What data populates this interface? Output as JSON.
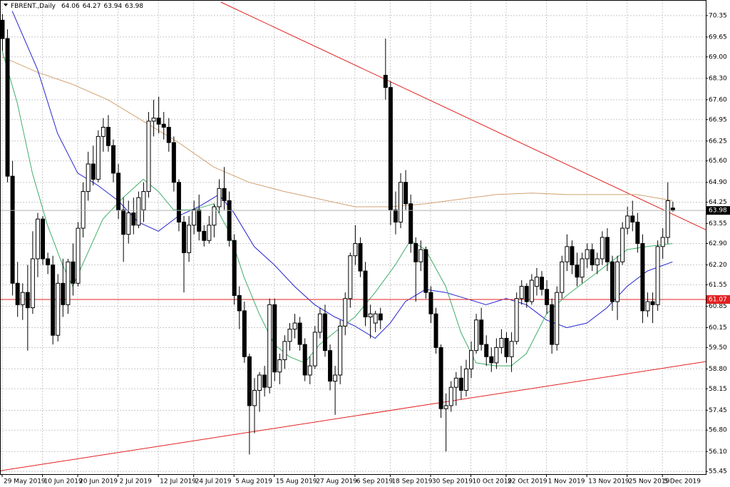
{
  "chart_data": {
    "type": "candlestick",
    "title": "FBRENT.,Daily",
    "header_ohlc": [
      64.06,
      64.27,
      63.94,
      63.98
    ],
    "categories": [
      "29 May 2019",
      null,
      null,
      null,
      null,
      null,
      null,
      null,
      "10 Jun 2019",
      null,
      null,
      null,
      null,
      null,
      null,
      "20 Jun 2019",
      null,
      null,
      null,
      null,
      null,
      null,
      null,
      "2 Jul 2019",
      null,
      null,
      null,
      null,
      null,
      null,
      null,
      "12 Jul 2019",
      null,
      null,
      null,
      null,
      null,
      null,
      "24 Jul 2019",
      null,
      null,
      null,
      null,
      null,
      null,
      null,
      "5 Aug 2019",
      null,
      null,
      null,
      null,
      null,
      null,
      null,
      "15 Aug 2019",
      null,
      null,
      null,
      null,
      null,
      null,
      null,
      "27 Aug 2019",
      null,
      null,
      null,
      null,
      null,
      null,
      null,
      "6 Sep 2019",
      null,
      null,
      null,
      null,
      null,
      null,
      "18 Sep 2019",
      null,
      null,
      null,
      null,
      null,
      null,
      null,
      "30 Sep 2019",
      null,
      null,
      null,
      null,
      null,
      null,
      null,
      "10 Oct 2019",
      null,
      null,
      null,
      null,
      null,
      null,
      "22 Oct 2019",
      null,
      null,
      null,
      null,
      null,
      null,
      null,
      "1 Nov 2019",
      null,
      null,
      null,
      null,
      null,
      null,
      null,
      "13 Nov 2019",
      null,
      null,
      null,
      null,
      null,
      null,
      null,
      "25 Nov 2019",
      null,
      null,
      null,
      null,
      null,
      null,
      "5 Dec 2019",
      null,
      null
    ],
    "ohlc": [
      [
        70.2,
        70.4,
        69.2,
        69.6
      ],
      [
        69.6,
        69.9,
        64.9,
        65.1
      ],
      [
        65.1,
        65.6,
        61.2,
        61.6
      ],
      [
        61.6,
        62.3,
        60.5,
        60.9
      ],
      [
        60.9,
        61.6,
        60.4,
        61.3
      ],
      [
        61.3,
        62.2,
        59.4,
        60.8
      ],
      [
        60.8,
        63.3,
        60.6,
        62.4
      ],
      [
        62.4,
        63.9,
        61.8,
        63.7
      ],
      [
        63.7,
        63.8,
        62.2,
        62.4
      ],
      [
        62.4,
        62.6,
        61.9,
        62.2
      ],
      [
        62.2,
        62.5,
        59.6,
        59.9
      ],
      [
        59.9,
        61.9,
        59.7,
        61.6
      ],
      [
        61.6,
        62.4,
        60.5,
        60.9
      ],
      [
        60.9,
        62.4,
        60.6,
        62.3
      ],
      [
        62.3,
        62.9,
        61.2,
        61.6
      ],
      [
        61.6,
        63.6,
        61.5,
        63.4
      ],
      [
        63.4,
        64.9,
        63.1,
        64.6
      ],
      [
        64.6,
        65.9,
        64.3,
        65.5
      ],
      [
        65.5,
        66.1,
        64.8,
        65.0
      ],
      [
        65.0,
        66.6,
        64.9,
        66.4
      ],
      [
        66.4,
        67.0,
        65.9,
        66.7
      ],
      [
        66.7,
        67.1,
        65.9,
        66.1
      ],
      [
        66.1,
        66.3,
        64.9,
        65.2
      ],
      [
        65.2,
        65.5,
        63.7,
        64.0
      ],
      [
        64.0,
        64.4,
        62.3,
        63.2
      ],
      [
        63.2,
        64.3,
        62.9,
        63.9
      ],
      [
        63.9,
        64.4,
        63.2,
        63.5
      ],
      [
        63.5,
        64.6,
        63.4,
        64.4
      ],
      [
        64.0,
        64.9,
        63.6,
        64.6
      ],
      [
        64.6,
        67.2,
        64.4,
        66.9
      ],
      [
        66.9,
        67.6,
        66.4,
        67.0
      ],
      [
        67.0,
        67.7,
        66.5,
        66.8
      ],
      [
        66.8,
        67.2,
        66.3,
        66.7
      ],
      [
        66.7,
        67.0,
        65.9,
        66.2
      ],
      [
        66.2,
        66.4,
        64.6,
        64.9
      ],
      [
        64.9,
        65.0,
        63.3,
        63.6
      ],
      [
        63.6,
        63.8,
        61.3,
        62.6
      ],
      [
        62.6,
        63.8,
        62.3,
        63.5
      ],
      [
        63.5,
        64.3,
        63.2,
        64.0
      ],
      [
        64.0,
        64.5,
        63.0,
        63.3
      ],
      [
        63.3,
        63.5,
        62.8,
        63.0
      ],
      [
        63.0,
        63.8,
        62.9,
        63.5
      ],
      [
        63.5,
        64.2,
        63.1,
        64.1
      ],
      [
        64.1,
        65.0,
        63.9,
        64.7
      ],
      [
        64.7,
        65.4,
        64.0,
        64.3
      ],
      [
        64.3,
        64.6,
        62.8,
        63.0
      ],
      [
        63.0,
        63.2,
        60.9,
        61.2
      ],
      [
        61.2,
        61.5,
        60.1,
        60.7
      ],
      [
        60.7,
        61.0,
        59.0,
        59.2
      ],
      [
        59.2,
        59.3,
        56.0,
        57.6
      ],
      [
        57.6,
        58.5,
        56.7,
        58.1
      ],
      [
        58.1,
        58.7,
        57.4,
        58.6
      ],
      [
        58.6,
        58.9,
        57.9,
        58.2
      ],
      [
        58.2,
        61.1,
        58.0,
        60.9
      ],
      [
        60.9,
        61.1,
        58.4,
        58.7
      ],
      [
        58.7,
        59.3,
        58.3,
        59.1
      ],
      [
        59.1,
        59.9,
        58.8,
        59.7
      ],
      [
        59.7,
        60.3,
        59.4,
        60.1
      ],
      [
        60.1,
        60.6,
        59.8,
        60.3
      ],
      [
        60.3,
        60.5,
        59.4,
        59.6
      ],
      [
        59.6,
        59.8,
        58.4,
        58.6
      ],
      [
        58.6,
        59.2,
        58.3,
        58.9
      ],
      [
        58.9,
        60.2,
        58.8,
        60.0
      ],
      [
        60.0,
        60.8,
        59.8,
        60.6
      ],
      [
        60.6,
        60.9,
        59.2,
        59.4
      ],
      [
        59.4,
        59.6,
        58.1,
        58.4
      ],
      [
        58.4,
        58.9,
        57.3,
        58.6
      ],
      [
        58.6,
        60.4,
        58.3,
        60.2
      ],
      [
        60.2,
        61.3,
        59.9,
        61.1
      ],
      [
        61.1,
        62.6,
        60.8,
        62.5
      ],
      [
        62.5,
        63.5,
        62.2,
        62.9
      ],
      [
        62.9,
        63.1,
        61.8,
        62.0
      ],
      [
        62.0,
        62.3,
        60.2,
        60.5
      ],
      [
        60.5,
        60.9,
        59.8,
        60.6
      ],
      [
        60.3,
        60.7,
        60.0,
        60.6
      ],
      [
        60.6,
        60.8,
        60.1,
        60.4
      ],
      [
        68.4,
        69.6,
        67.6,
        68.0
      ],
      [
        68.0,
        68.2,
        63.5,
        64.0
      ],
      [
        64.0,
        64.6,
        63.2,
        63.6
      ],
      [
        63.6,
        65.2,
        63.4,
        64.9
      ],
      [
        64.9,
        65.3,
        64.0,
        64.2
      ],
      [
        64.2,
        64.5,
        62.6,
        62.9
      ],
      [
        62.9,
        63.1,
        61.0,
        62.3
      ],
      [
        62.3,
        63.0,
        62.0,
        62.7
      ],
      [
        62.7,
        62.8,
        61.1,
        61.3
      ],
      [
        61.3,
        61.5,
        60.3,
        60.6
      ],
      [
        60.6,
        60.8,
        59.3,
        59.5
      ],
      [
        59.5,
        59.6,
        57.2,
        57.5
      ],
      [
        57.5,
        58.0,
        56.1,
        57.6
      ],
      [
        57.6,
        58.4,
        57.4,
        58.2
      ],
      [
        58.2,
        58.7,
        57.6,
        58.5
      ],
      [
        58.5,
        58.9,
        57.8,
        58.1
      ],
      [
        58.1,
        59.1,
        57.9,
        58.8
      ],
      [
        58.8,
        59.7,
        58.5,
        59.4
      ],
      [
        59.4,
        60.6,
        59.3,
        60.4
      ],
      [
        60.4,
        60.8,
        59.4,
        59.6
      ],
      [
        59.6,
        59.9,
        58.9,
        59.2
      ],
      [
        59.2,
        59.5,
        58.7,
        59.0
      ],
      [
        59.0,
        59.8,
        58.8,
        59.5
      ],
      [
        59.5,
        60.1,
        59.3,
        59.8
      ],
      [
        59.8,
        60.0,
        59.0,
        59.2
      ],
      [
        59.2,
        60.0,
        58.7,
        59.7
      ],
      [
        59.7,
        61.3,
        59.6,
        61.1
      ],
      [
        61.1,
        61.7,
        60.9,
        61.5
      ],
      [
        61.5,
        61.6,
        60.8,
        61.0
      ],
      [
        61.0,
        61.9,
        60.9,
        61.7
      ],
      [
        61.5,
        62.1,
        61.2,
        61.8
      ],
      [
        61.8,
        62.0,
        61.2,
        61.4
      ],
      [
        61.4,
        61.7,
        60.6,
        60.9
      ],
      [
        60.9,
        61.1,
        59.3,
        59.6
      ],
      [
        59.6,
        61.5,
        59.4,
        61.3
      ],
      [
        61.3,
        62.5,
        61.1,
        62.3
      ],
      [
        62.3,
        63.2,
        62.0,
        62.8
      ],
      [
        62.8,
        63.0,
        61.9,
        62.2
      ],
      [
        62.2,
        62.6,
        61.5,
        61.8
      ],
      [
        61.8,
        62.6,
        61.6,
        62.4
      ],
      [
        62.4,
        62.9,
        62.1,
        62.7
      ],
      [
        62.7,
        62.9,
        62.0,
        62.2
      ],
      [
        62.2,
        62.6,
        61.9,
        62.4
      ],
      [
        62.4,
        63.3,
        62.2,
        63.1
      ],
      [
        63.1,
        63.4,
        62.0,
        62.3
      ],
      [
        62.3,
        62.5,
        60.7,
        61.0
      ],
      [
        61.0,
        62.5,
        60.4,
        62.3
      ],
      [
        62.3,
        63.6,
        62.2,
        63.4
      ],
      [
        63.4,
        64.1,
        63.2,
        63.8
      ],
      [
        63.8,
        64.3,
        63.3,
        63.6
      ],
      [
        63.6,
        63.9,
        62.6,
        62.9
      ],
      [
        62.9,
        63.2,
        60.3,
        60.7
      ],
      [
        60.7,
        61.3,
        60.5,
        61.0
      ],
      [
        61.0,
        61.3,
        60.3,
        60.9
      ],
      [
        60.9,
        63.0,
        60.7,
        62.8
      ],
      [
        62.8,
        63.4,
        62.4,
        63.1
      ],
      [
        63.1,
        64.9,
        62.9,
        64.3
      ],
      [
        64.06,
        64.27,
        63.94,
        63.98
      ]
    ],
    "xlim": [
      -0.42,
      139.6
    ],
    "ylim": [
      55.36,
      70.86
    ],
    "yticks": [
      55.45,
      {
        "value": 56.1,
        "label": "56.10"
      },
      {
        "value": 56.8,
        "label": "56.80"
      },
      57.45,
      58.15,
      {
        "value": 58.8,
        "label": "58.80"
      },
      {
        "value": 59.5,
        "label": "59.50"
      },
      60.15,
      60.85,
      61.55,
      {
        "value": 62.2,
        "label": "62.20"
      },
      {
        "value": 62.9,
        "label": "62.90"
      },
      63.55,
      64.25,
      {
        "value": 64.9,
        "label": "64.90"
      },
      {
        "value": 65.6,
        "label": "65.60"
      },
      66.25,
      66.95,
      {
        "value": 67.6,
        "label": "67.60"
      },
      {
        "value": 68.3,
        "label": "68.30"
      },
      {
        "value": 69,
        "label": "69.00"
      },
      69.65,
      70.35
    ],
    "grid": true,
    "bid": 63.98,
    "level": {
      "value": 61.07,
      "color": "#e32020"
    },
    "trendlines": [
      {
        "color": "#e32020",
        "x": [
          43.4,
          139.6
        ],
        "values": [
          70.79,
          63.35
        ]
      },
      {
        "color": "#e32020",
        "x": [
          -0.42,
          139.6
        ],
        "values": [
          55.47,
          59.04
        ]
      }
    ],
    "series": [
      {
        "color": "#d2a272",
        "x": [
          0,
          7,
          14,
          21,
          28,
          35,
          42,
          49,
          56,
          63,
          70,
          77,
          84,
          91,
          98,
          105,
          112,
          119,
          126,
          133
        ],
        "values": [
          69.0,
          68.5,
          68.1,
          67.6,
          66.9,
          66.2,
          65.4,
          64.9,
          64.6,
          64.35,
          64.1,
          64.1,
          64.2,
          64.35,
          64.5,
          64.55,
          64.5,
          64.5,
          64.5,
          64.3
        ]
      },
      {
        "color": "#2424d0",
        "x": [
          2,
          7,
          11,
          15,
          19,
          23,
          27,
          31,
          35,
          39,
          43,
          46,
          50,
          54,
          58,
          62,
          66,
          70,
          74,
          77,
          80,
          84,
          88,
          92,
          96,
          100,
          104,
          108,
          112,
          116,
          120,
          124,
          128,
          133
        ],
        "values": [
          70.5,
          68.6,
          66.5,
          65.2,
          64.8,
          64.3,
          63.6,
          63.3,
          63.8,
          64.1,
          64.5,
          63.9,
          62.8,
          62.2,
          61.5,
          60.9,
          60.5,
          60.2,
          59.8,
          60.3,
          61.0,
          61.4,
          61.3,
          61.1,
          60.9,
          61.1,
          60.9,
          60.4,
          60.15,
          60.3,
          60.8,
          61.5,
          62.0,
          62.3
        ]
      },
      {
        "color": "#3fae66",
        "x": [
          0,
          3,
          6,
          9,
          12,
          14,
          17,
          20,
          24,
          28,
          31,
          34,
          38,
          42,
          45,
          48,
          51,
          54,
          57,
          60,
          63,
          66,
          70,
          74,
          78,
          81,
          84,
          88,
          91,
          94,
          98,
          101,
          104,
          108,
          112,
          116,
          120,
          124,
          128,
          133
        ],
        "values": [
          69.2,
          67.5,
          65.2,
          63.5,
          62.2,
          61.5,
          62.6,
          63.7,
          64.4,
          65.0,
          64.6,
          64.0,
          64.0,
          64.2,
          63.3,
          61.8,
          60.6,
          59.6,
          59.2,
          59.0,
          59.6,
          60.0,
          60.5,
          61.3,
          62.2,
          63.0,
          62.7,
          61.5,
          60.0,
          59.0,
          58.9,
          58.9,
          59.3,
          60.6,
          61.2,
          61.7,
          62.2,
          62.7,
          62.8,
          62.9
        ]
      }
    ]
  }
}
